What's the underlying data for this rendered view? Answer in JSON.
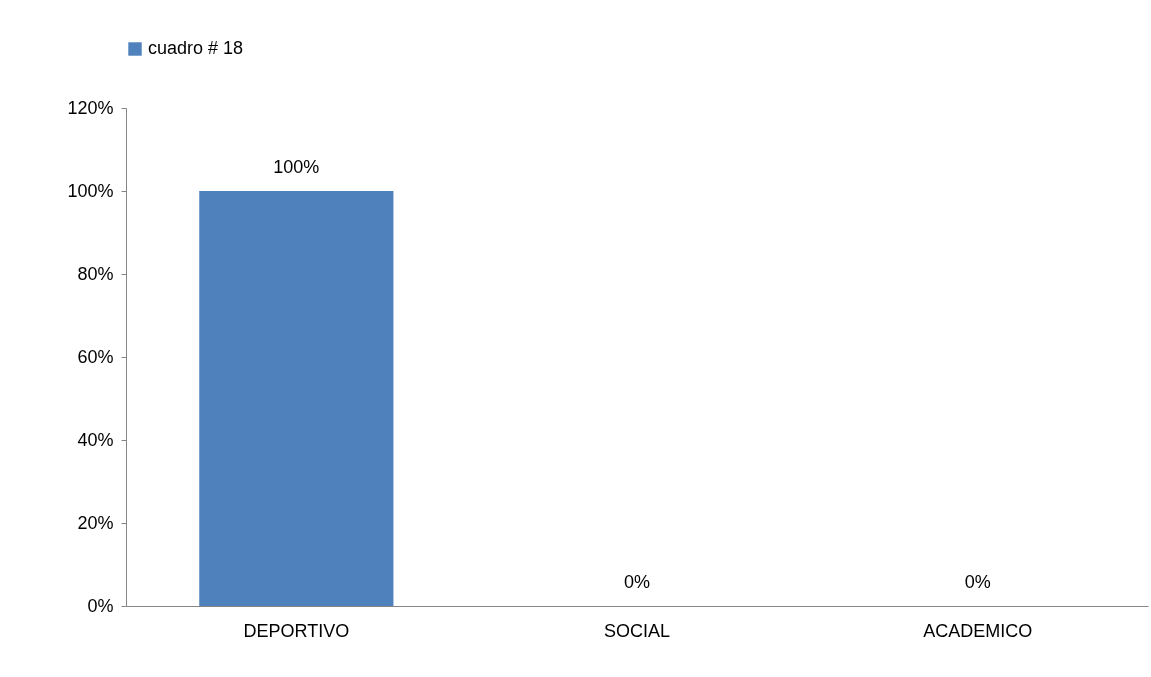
{
  "chart_data": {
    "type": "bar",
    "categories": [
      "DEPORTIVO",
      "SOCIAL",
      "ACADEMICO"
    ],
    "series": [
      {
        "name": "cuadro # 18",
        "color": "#4f81bd",
        "values": [
          100,
          0,
          0
        ],
        "value_labels": [
          "100%",
          "0%",
          "0%"
        ]
      }
    ],
    "ylim": [
      0,
      120
    ],
    "yticks": [
      {
        "value": 0,
        "label": "0%"
      },
      {
        "value": 20,
        "label": "20%"
      },
      {
        "value": 40,
        "label": "40%"
      },
      {
        "value": 60,
        "label": "60%"
      },
      {
        "value": 80,
        "label": "80%"
      },
      {
        "value": 100,
        "label": "100%"
      },
      {
        "value": 120,
        "label": "120%"
      }
    ],
    "grid": false,
    "legend": "top"
  }
}
